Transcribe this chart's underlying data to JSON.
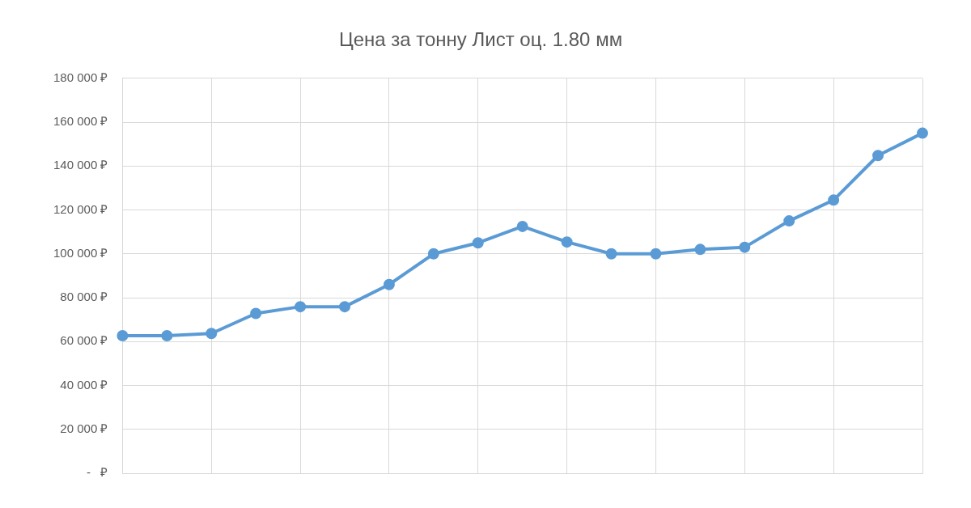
{
  "chart_data": {
    "type": "line",
    "title": "Цена за тонну Лист оц. 1.80 мм",
    "categories": [
      null,
      null,
      null,
      null,
      null,
      null,
      null,
      null,
      null,
      null,
      null,
      null,
      null,
      null,
      null,
      null,
      null,
      null,
      null
    ],
    "series": [
      {
        "color": "#5b9bd5",
        "values": [
          62700,
          62700,
          63700,
          72800,
          75900,
          75900,
          86000,
          100000,
          105000,
          112500,
          105400,
          100000,
          100000,
          102000,
          103000,
          115000,
          124500,
          144800,
          155000
        ]
      }
    ],
    "ylim": [
      0,
      180000
    ],
    "yticks": [
      {
        "value": 0,
        "label": "-   ₽"
      },
      {
        "value": 20000,
        "label": "20 000 ₽"
      },
      {
        "value": 40000,
        "label": "40 000 ₽"
      },
      {
        "value": 60000,
        "label": "60 000 ₽"
      },
      {
        "value": 80000,
        "label": "80 000 ₽"
      },
      {
        "value": 100000,
        "label": "100 000 ₽"
      },
      {
        "value": 120000,
        "label": "120 000 ₽"
      },
      {
        "value": 140000,
        "label": "140 000 ₽"
      },
      {
        "value": 160000,
        "label": "160 000 ₽"
      },
      {
        "value": 180000,
        "label": "180 000 ₽"
      }
    ],
    "grid": true,
    "legend": false,
    "marker": "circle",
    "line_style": "solid"
  }
}
